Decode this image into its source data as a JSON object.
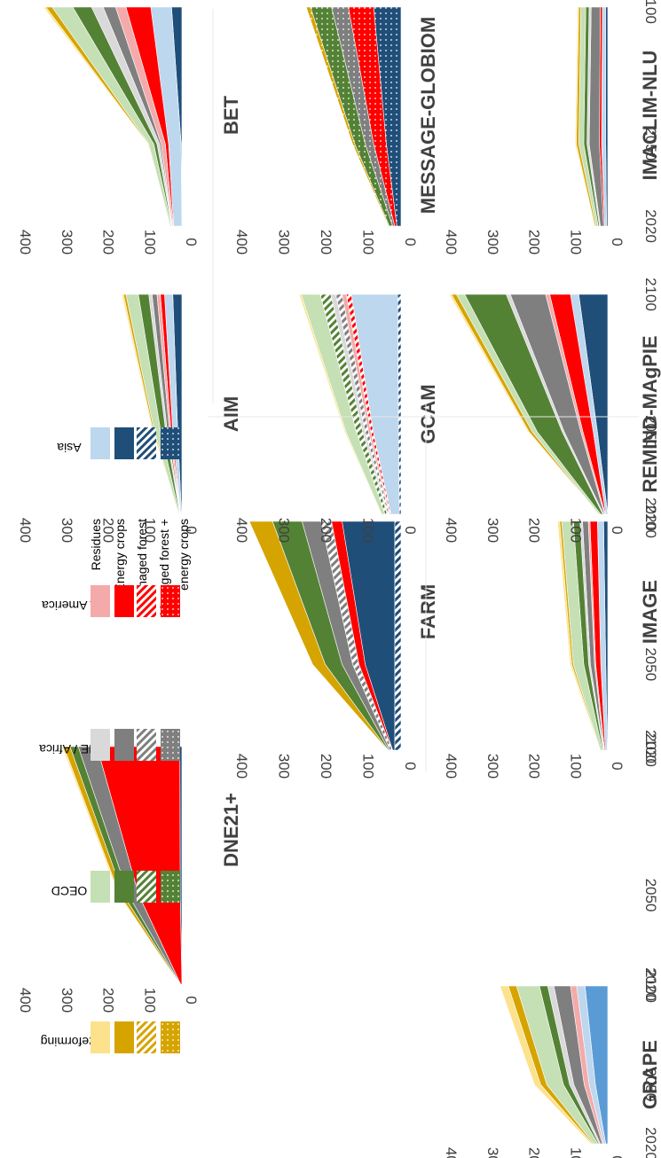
{
  "legend": {
    "row_labels": [
      "Residues",
      "Energy crops",
      "Managed forest",
      "Managed forest +",
      "energy crops"
    ],
    "regions": [
      "Reforming",
      "OECD",
      "ME / Africa",
      "L America",
      "Asia"
    ]
  },
  "colors": {
    "residues": [
      "#fce28c",
      "#c5e0b4",
      "#d9d9d9",
      "#f4aaaa",
      "#bdd7ee"
    ],
    "crops": [
      "#d6a400",
      "#548235",
      "#7f7f7f",
      "#ff0000",
      "#1f4e79"
    ],
    "grape_asia": "#5b9bd5"
  },
  "axis": {
    "y_ticks": [
      "0",
      "100",
      "200",
      "300",
      "400"
    ],
    "x_ticks": [
      "2020",
      "2050",
      "2100"
    ]
  },
  "chart_data": [
    {
      "type": "area",
      "title": "DNE21+",
      "ylim": [
        0,
        400
      ],
      "x": [
        2020,
        2050,
        2100
      ],
      "series": [
        {
          "name": "Asia",
          "category": "Energy crops",
          "values": [
            0,
            4,
            5
          ]
        },
        {
          "name": "L America",
          "category": "Energy crops",
          "values": [
            3,
            100,
            200
          ]
        },
        {
          "name": "ME / Africa",
          "category": "Energy crops",
          "values": [
            1,
            25,
            45
          ]
        },
        {
          "name": "OECD",
          "category": "Energy crops",
          "values": [
            1,
            12,
            20
          ]
        },
        {
          "name": "Reforming",
          "category": "Energy crops",
          "values": [
            1,
            9,
            15
          ]
        },
        {
          "name": "Reforming",
          "category": "Residues",
          "values": [
            0,
            3,
            4
          ]
        }
      ]
    },
    {
      "type": "area",
      "title": "FARM",
      "ylim": [
        0,
        400
      ],
      "x": [
        2020,
        2050,
        2100
      ],
      "series": [
        {
          "name": "Asia",
          "category": "Managed forest",
          "values": [
            15,
            15,
            15
          ]
        },
        {
          "name": "Asia",
          "category": "Energy crops",
          "values": [
            5,
            70,
            125
          ]
        },
        {
          "name": "L America",
          "category": "Energy crops",
          "values": [
            1,
            15,
            25
          ]
        },
        {
          "name": "ME / Africa",
          "category": "Managed forest",
          "values": [
            5,
            15,
            25
          ]
        },
        {
          "name": "ME / Africa",
          "category": "Energy crops",
          "values": [
            3,
            25,
            45
          ]
        },
        {
          "name": "OECD",
          "category": "Energy crops",
          "values": [
            2,
            40,
            70
          ]
        },
        {
          "name": "Reforming",
          "category": "Energy crops",
          "values": [
            1,
            30,
            55
          ]
        }
      ]
    },
    {
      "type": "area",
      "title": "AIM",
      "ylim": [
        0,
        400
      ],
      "x": [
        2020,
        2050,
        2100
      ],
      "series": [
        {
          "name": "Asia",
          "category": "Energy crops",
          "values": [
            1,
            10,
            22
          ]
        },
        {
          "name": "Asia",
          "category": "Residues",
          "values": [
            2,
            12,
            20
          ]
        },
        {
          "name": "L America",
          "category": "Energy crops",
          "values": [
            0,
            4,
            10
          ]
        },
        {
          "name": "L America",
          "category": "Residues",
          "values": [
            1,
            4,
            8
          ]
        },
        {
          "name": "ME / Africa",
          "category": "Energy crops",
          "values": [
            0,
            5,
            12
          ]
        },
        {
          "name": "ME / Africa",
          "category": "Residues",
          "values": [
            1,
            4,
            8
          ]
        },
        {
          "name": "OECD",
          "category": "Energy crops",
          "values": [
            1,
            12,
            25
          ]
        },
        {
          "name": "OECD",
          "category": "Residues",
          "values": [
            2,
            15,
            30
          ]
        },
        {
          "name": "Reforming",
          "category": "Energy crops",
          "values": [
            0,
            3,
            6
          ]
        },
        {
          "name": "Reforming",
          "category": "Residues",
          "values": [
            0,
            2,
            4
          ]
        }
      ]
    },
    {
      "type": "area",
      "title": "BET",
      "ylim": [
        0,
        400
      ],
      "x": [
        2020,
        2050,
        2100
      ],
      "series": [
        {
          "name": "Asia",
          "category": "Energy crops",
          "values": [
            0,
            2,
            25
          ]
        },
        {
          "name": "Asia",
          "category": "Residues",
          "values": [
            20,
            30,
            50
          ]
        },
        {
          "name": "L America",
          "category": "Energy crops",
          "values": [
            1,
            8,
            60
          ]
        },
        {
          "name": "L America",
          "category": "Residues",
          "values": [
            2,
            10,
            25
          ]
        },
        {
          "name": "ME / Africa",
          "category": "Energy crops",
          "values": [
            0,
            4,
            30
          ]
        },
        {
          "name": "ME / Africa",
          "category": "Residues",
          "values": [
            1,
            6,
            28
          ]
        },
        {
          "name": "OECD",
          "category": "Energy crops",
          "values": [
            1,
            8,
            45
          ]
        },
        {
          "name": "OECD",
          "category": "Residues",
          "values": [
            3,
            12,
            50
          ]
        },
        {
          "name": "Reforming",
          "category": "Energy crops",
          "values": [
            0,
            2,
            15
          ]
        },
        {
          "name": "Reforming",
          "category": "Residues",
          "values": [
            0,
            1,
            6
          ]
        }
      ]
    },
    {
      "type": "area",
      "title": "GCAM",
      "ylim": [
        0,
        400
      ],
      "x": [
        2020,
        2050,
        2100
      ],
      "series": [
        {
          "name": "Asia",
          "category": "Managed forest",
          "values": [
            4,
            6,
            8
          ]
        },
        {
          "name": "Asia",
          "category": "Residues",
          "values": [
            20,
            60,
            110
          ]
        },
        {
          "name": "L America",
          "category": "Managed forest",
          "values": [
            2,
            6,
            12
          ]
        },
        {
          "name": "L America",
          "category": "Residues",
          "values": [
            2,
            5,
            10
          ]
        },
        {
          "name": "ME / Africa",
          "category": "Managed forest",
          "values": [
            3,
            8,
            15
          ]
        },
        {
          "name": "ME / Africa",
          "category": "Residues",
          "values": [
            2,
            6,
            12
          ]
        },
        {
          "name": "OECD",
          "category": "Managed forest",
          "values": [
            5,
            15,
            25
          ]
        },
        {
          "name": "OECD",
          "category": "Residues",
          "values": [
            8,
            25,
            45
          ]
        },
        {
          "name": "Reforming",
          "category": "Residues",
          "values": [
            1,
            3,
            5
          ]
        }
      ]
    },
    {
      "type": "area",
      "title": "MESSAGE-GLOBIOM",
      "ylim": [
        0,
        400
      ],
      "x": [
        2020,
        2050,
        2100
      ],
      "series": [
        {
          "name": "Asia",
          "category": "Managed forest + energy crops",
          "values": [
            10,
            35,
            65
          ]
        },
        {
          "name": "L America",
          "category": "Managed forest + energy crops",
          "values": [
            5,
            30,
            60
          ]
        },
        {
          "name": "ME / Africa",
          "category": "Managed forest + energy crops",
          "values": [
            5,
            20,
            40
          ]
        },
        {
          "name": "OECD",
          "category": "Managed forest + energy crops",
          "values": [
            8,
            25,
            50
          ]
        },
        {
          "name": "Reforming",
          "category": "Managed forest + energy crops",
          "values": [
            2,
            5,
            10
          ]
        }
      ]
    },
    {
      "type": "area",
      "title": "GRAPE",
      "ylim": [
        0,
        400
      ],
      "x": [
        2020,
        2050,
        2100
      ],
      "series": [
        {
          "name": "Asia",
          "category": "Energy crops",
          "values": [
            5,
            30,
            55
          ]
        },
        {
          "name": "Asia",
          "category": "Residues",
          "values": [
            5,
            15,
            20
          ]
        },
        {
          "name": "L America",
          "category": "Residues",
          "values": [
            3,
            12,
            15
          ]
        },
        {
          "name": "ME / Africa",
          "category": "Energy crops",
          "values": [
            5,
            25,
            40
          ]
        },
        {
          "name": "ME / Africa",
          "category": "Residues",
          "values": [
            3,
            10,
            15
          ]
        },
        {
          "name": "OECD",
          "category": "Energy crops",
          "values": [
            3,
            15,
            20
          ]
        },
        {
          "name": "OECD",
          "category": "Residues",
          "values": [
            10,
            40,
            55
          ]
        },
        {
          "name": "Reforming",
          "category": "Energy crops",
          "values": [
            3,
            15,
            20
          ]
        },
        {
          "name": "Reforming",
          "category": "Residues",
          "values": [
            4,
            15,
            20
          ]
        }
      ]
    },
    {
      "type": "area",
      "title": "IMAGE",
      "ylim": [
        0,
        400
      ],
      "x": [
        2020,
        2050,
        2100
      ],
      "series": [
        {
          "name": "Asia",
          "category": "Energy crops",
          "values": [
            1,
            5,
            10
          ]
        },
        {
          "name": "Asia",
          "category": "Residues",
          "values": [
            5,
            12,
            15
          ]
        },
        {
          "name": "L America",
          "category": "Energy crops",
          "values": [
            2,
            12,
            18
          ]
        },
        {
          "name": "L America",
          "category": "Residues",
          "values": [
            1,
            3,
            4
          ]
        },
        {
          "name": "ME / Africa",
          "category": "Energy crops",
          "values": [
            1,
            10,
            14
          ]
        },
        {
          "name": "ME / Africa",
          "category": "Residues",
          "values": [
            1,
            4,
            6
          ]
        },
        {
          "name": "OECD",
          "category": "Energy crops",
          "values": [
            2,
            12,
            16
          ]
        },
        {
          "name": "OECD",
          "category": "Residues",
          "values": [
            5,
            25,
            28
          ]
        },
        {
          "name": "Reforming",
          "category": "Energy crops",
          "values": [
            1,
            4,
            5
          ]
        },
        {
          "name": "Reforming",
          "category": "Residues",
          "values": [
            1,
            4,
            5
          ]
        }
      ]
    },
    {
      "type": "area",
      "title": "REMIND-MAgPIE",
      "ylim": [
        0,
        400
      ],
      "x": [
        2020,
        2050,
        2100
      ],
      "series": [
        {
          "name": "Asia",
          "category": "Energy crops",
          "values": [
            0,
            25,
            70
          ]
        },
        {
          "name": "Asia",
          "category": "Residues",
          "values": [
            5,
            10,
            20
          ]
        },
        {
          "name": "L America",
          "category": "Energy crops",
          "values": [
            1,
            25,
            50
          ]
        },
        {
          "name": "L America",
          "category": "Residues",
          "values": [
            2,
            5,
            10
          ]
        },
        {
          "name": "ME / Africa",
          "category": "Energy crops",
          "values": [
            2,
            40,
            85
          ]
        },
        {
          "name": "ME / Africa",
          "category": "Residues",
          "values": [
            2,
            5,
            10
          ]
        },
        {
          "name": "OECD",
          "category": "Energy crops",
          "values": [
            5,
            60,
            100
          ]
        },
        {
          "name": "OECD",
          "category": "Residues",
          "values": [
            5,
            12,
            20
          ]
        },
        {
          "name": "Reforming",
          "category": "Energy crops",
          "values": [
            0,
            8,
            12
          ]
        },
        {
          "name": "Reforming",
          "category": "Residues",
          "values": [
            1,
            3,
            5
          ]
        }
      ]
    },
    {
      "type": "area",
      "title": "IMACLIM-NLU",
      "ylim": [
        0,
        400
      ],
      "x": [
        2020,
        2050,
        2100
      ],
      "series": [
        {
          "name": "Asia",
          "category": "Energy crops",
          "values": [
            3,
            5,
            5
          ]
        },
        {
          "name": "Asia",
          "category": "Residues",
          "values": [
            5,
            10,
            8
          ]
        },
        {
          "name": "L America",
          "category": "Energy crops",
          "values": [
            2,
            5,
            5
          ]
        },
        {
          "name": "ME / Africa",
          "category": "Energy crops",
          "values": [
            8,
            25,
            22
          ]
        },
        {
          "name": "ME / Africa",
          "category": "Residues",
          "values": [
            2,
            5,
            5
          ]
        },
        {
          "name": "OECD",
          "category": "Energy crops",
          "values": [
            3,
            8,
            8
          ]
        },
        {
          "name": "OECD",
          "category": "Residues",
          "values": [
            5,
            12,
            12
          ]
        },
        {
          "name": "Reforming",
          "category": "Energy crops",
          "values": [
            3,
            6,
            5
          ]
        },
        {
          "name": "Reforming",
          "category": "Residues",
          "values": [
            1,
            3,
            3
          ]
        }
      ]
    }
  ]
}
